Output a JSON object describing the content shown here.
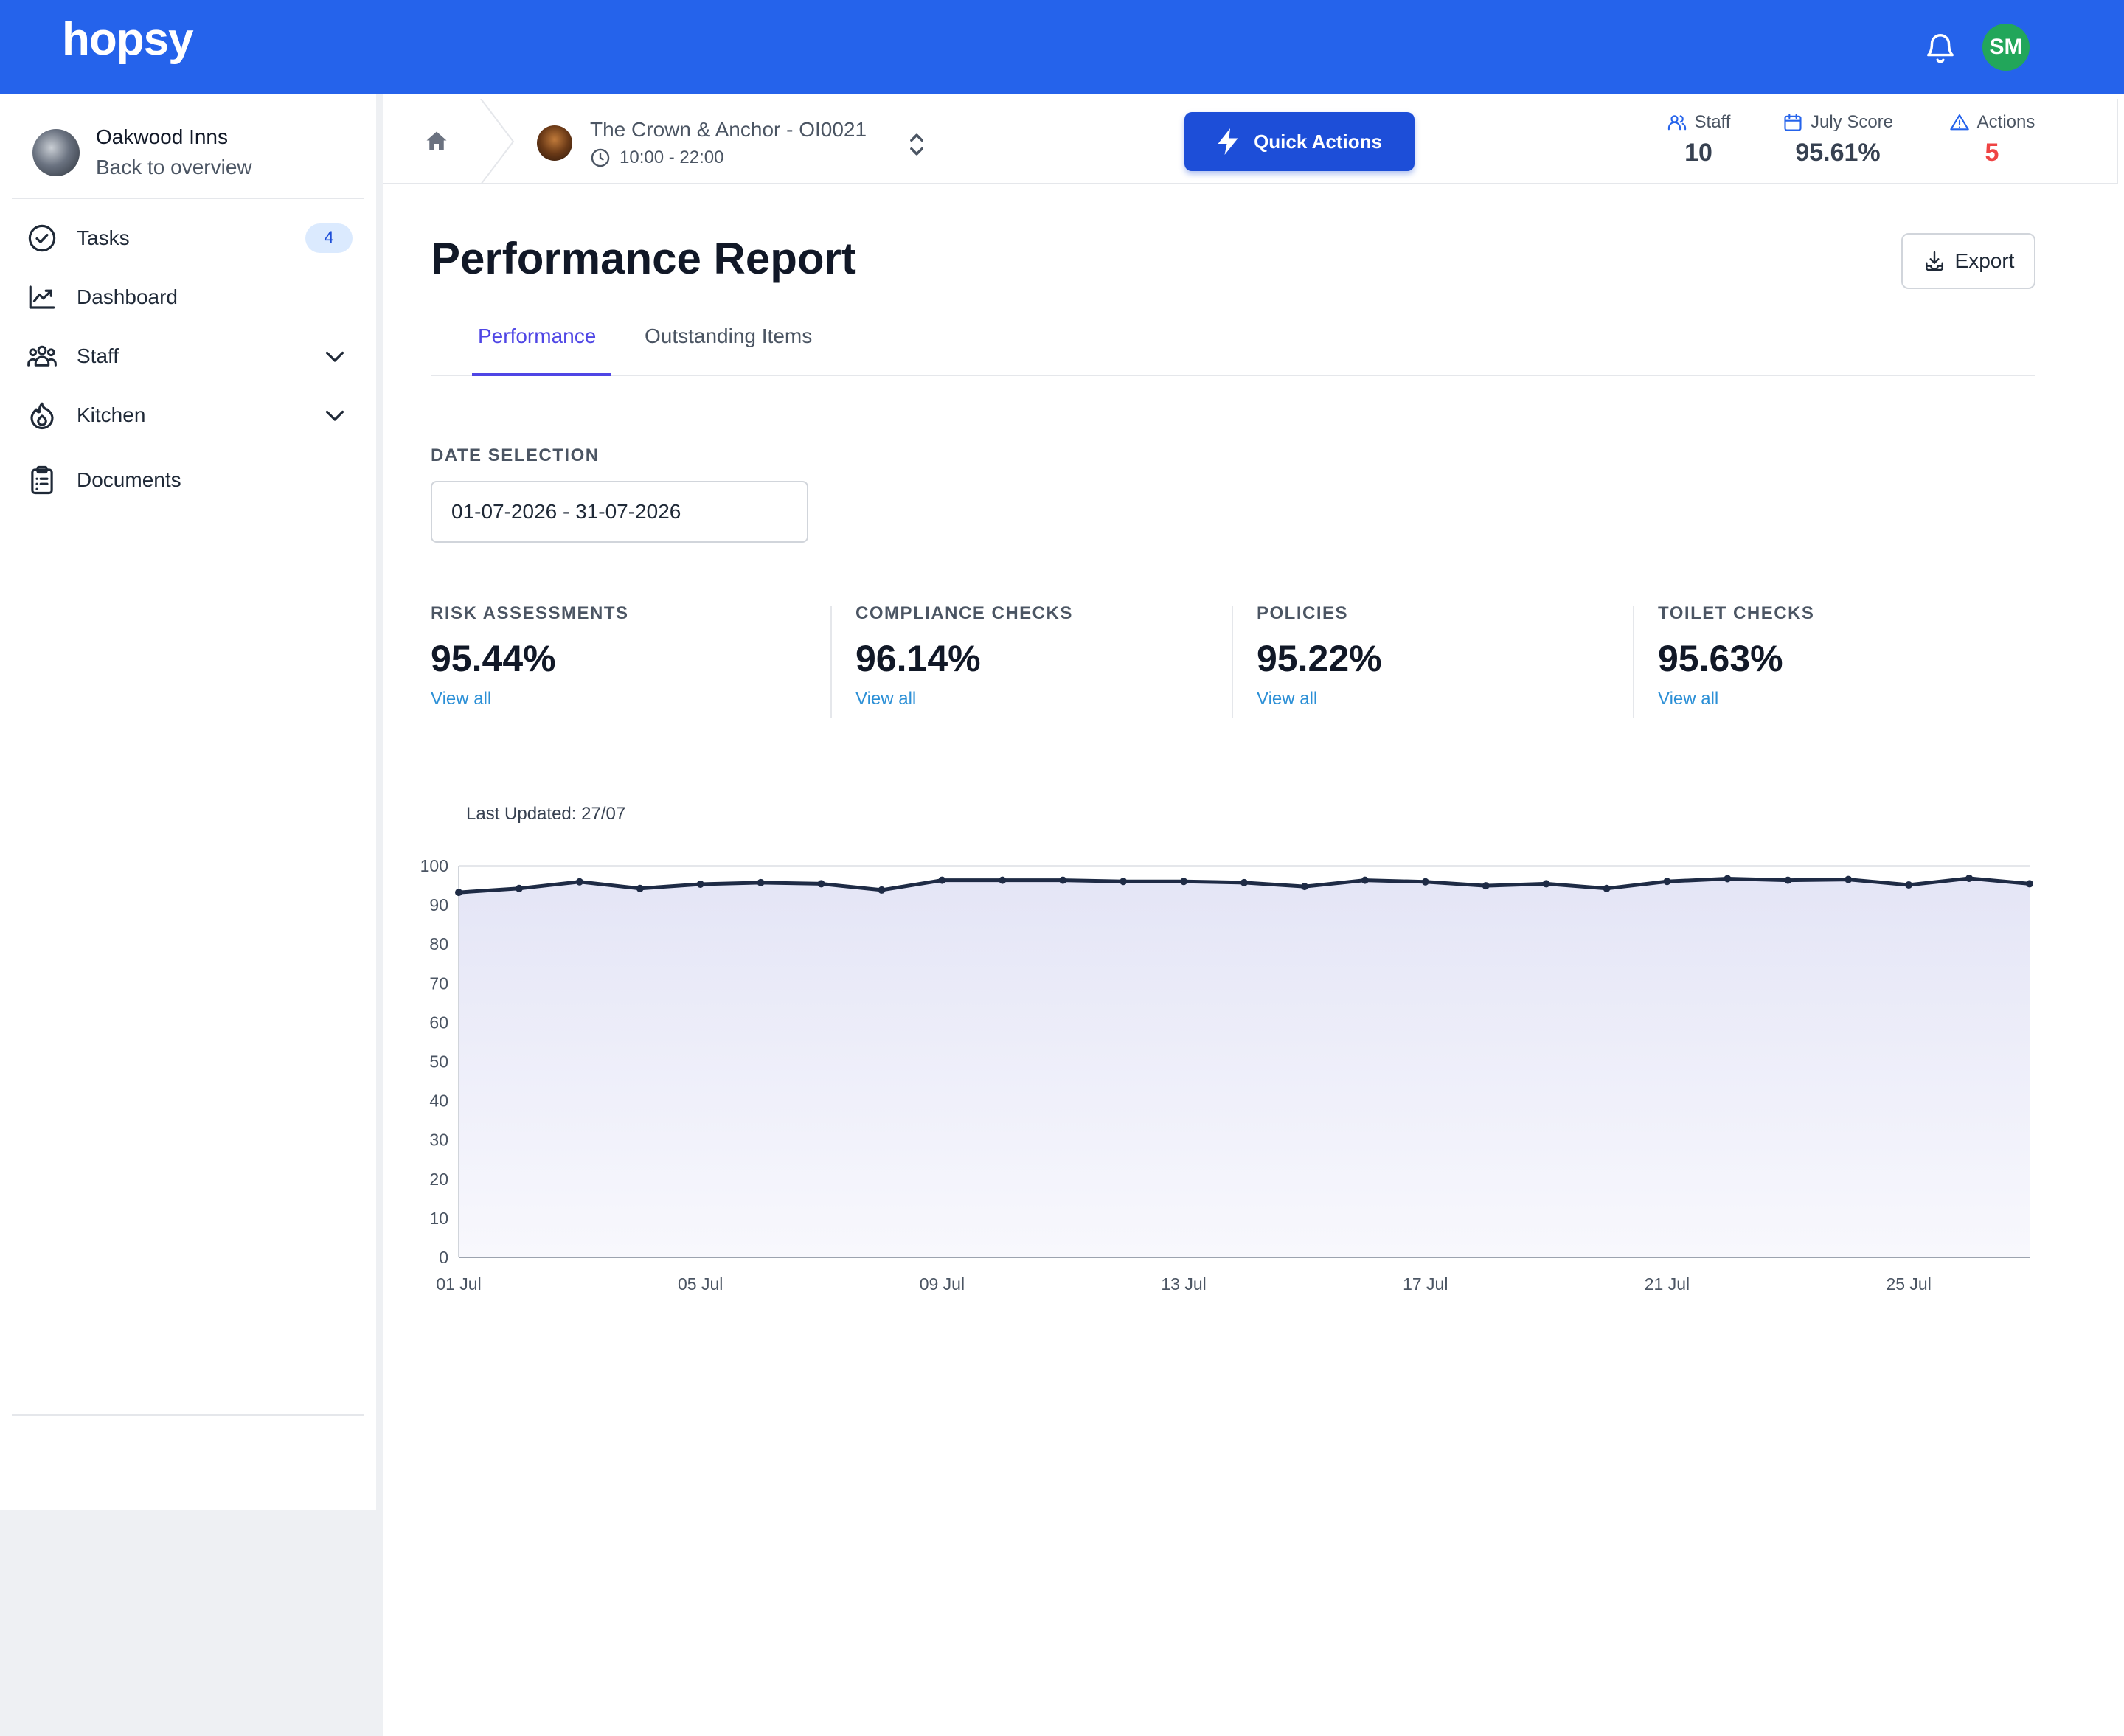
{
  "header": {
    "logo": "hopsy",
    "user_initials": "SM"
  },
  "sidebar": {
    "org_name": "Oakwood Inns",
    "back_label": "Back to overview",
    "items": [
      {
        "label": "Tasks",
        "icon": "check-circle-icon",
        "badge": "4"
      },
      {
        "label": "Dashboard",
        "icon": "chart-line-icon"
      },
      {
        "label": "Staff",
        "icon": "users-icon",
        "expandable": true
      },
      {
        "label": "Kitchen",
        "icon": "fire-icon",
        "expandable": true
      },
      {
        "label": "Documents",
        "icon": "clipboard-icon"
      }
    ]
  },
  "context": {
    "venue_name": "The Crown & Anchor - OI0021",
    "hours": "10:00 - 22:00",
    "quick_actions_label": "Quick Actions",
    "stats": [
      {
        "label": "Staff",
        "value": "10",
        "icon": "users-icon"
      },
      {
        "label": "July Score",
        "value": "95.61%",
        "icon": "calendar-icon"
      },
      {
        "label": "Actions",
        "value": "5",
        "icon": "warning-icon",
        "color": "#ef4444"
      }
    ]
  },
  "page": {
    "title": "Performance Report",
    "export_label": "Export",
    "tabs": [
      "Performance",
      "Outstanding Items"
    ],
    "active_tab": "Performance",
    "date_label": "DATE SELECTION",
    "date_value": "01-07-2026 - 31-07-2026",
    "metrics": [
      {
        "label": "RISK ASSESSMENTS",
        "value": "95.44%",
        "link": "View all"
      },
      {
        "label": "COMPLIANCE CHECKS",
        "value": "96.14%",
        "link": "View all"
      },
      {
        "label": "POLICIES",
        "value": "95.22%",
        "link": "View all"
      },
      {
        "label": "TOILET CHECKS",
        "value": "95.63%",
        "link": "View all"
      }
    ],
    "last_updated": "Last Updated: 27/07"
  },
  "colors": {
    "brand": "#2563eb",
    "accent": "#4f46e5",
    "link": "#2b8fd6",
    "danger": "#ef4444",
    "line": "#1e2b45",
    "fill": "#e4e5f6"
  },
  "chart_data": {
    "type": "area",
    "x": [
      "01 Jul",
      "02 Jul",
      "03 Jul",
      "04 Jul",
      "05 Jul",
      "06 Jul",
      "07 Jul",
      "08 Jul",
      "09 Jul",
      "10 Jul",
      "11 Jul",
      "12 Jul",
      "13 Jul",
      "14 Jul",
      "15 Jul",
      "16 Jul",
      "17 Jul",
      "18 Jul",
      "19 Jul",
      "20 Jul",
      "21 Jul",
      "22 Jul",
      "23 Jul",
      "24 Jul",
      "25 Jul",
      "26 Jul",
      "27 Jul"
    ],
    "x_tick_labels": [
      "01 Jul",
      "05 Jul",
      "09 Jul",
      "13 Jul",
      "17 Jul",
      "21 Jul",
      "25 Jul"
    ],
    "series": [
      {
        "values": [
          93.2,
          94.2,
          95.9,
          94.2,
          95.3,
          95.7,
          95.4,
          93.8,
          96.3,
          96.3,
          96.3,
          96.0,
          96.0,
          95.7,
          94.7,
          96.3,
          95.9,
          94.9,
          95.4,
          94.2,
          96.0,
          96.7,
          96.3,
          96.5,
          95.1,
          96.8,
          95.4
        ]
      }
    ],
    "ylim": [
      0,
      100
    ],
    "y_ticks": [
      0,
      10,
      20,
      30,
      40,
      50,
      60,
      70,
      80,
      90,
      100
    ],
    "grid": true,
    "legend": "none"
  }
}
